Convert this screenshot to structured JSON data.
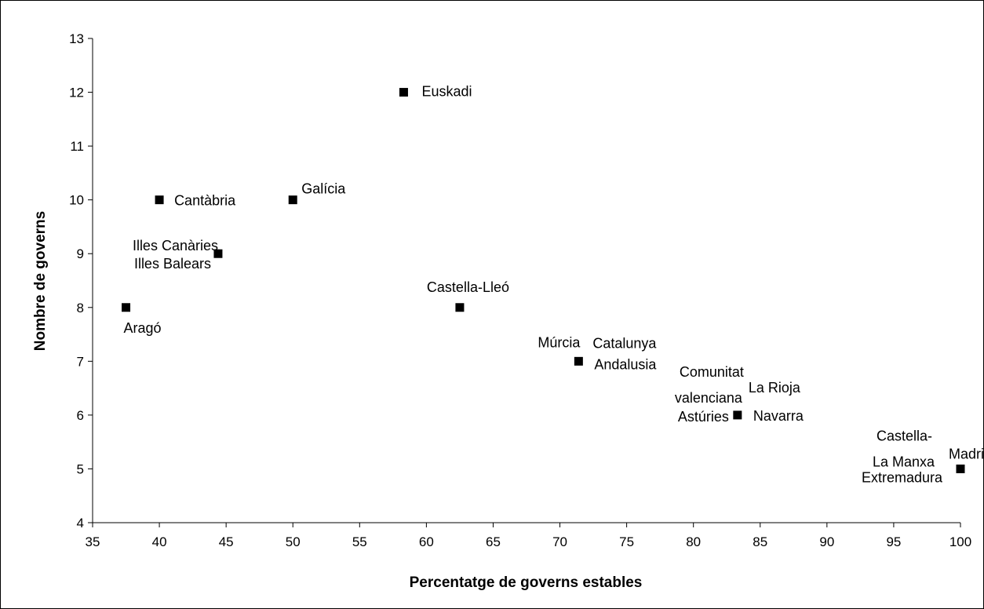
{
  "chart_data": {
    "type": "scatter",
    "xlabel": "Percentatge de governs estables",
    "ylabel": "Nombre de governs",
    "xlim": [
      35,
      100
    ],
    "ylim": [
      4,
      13
    ],
    "xticks": [
      35,
      40,
      45,
      50,
      55,
      60,
      65,
      70,
      75,
      80,
      85,
      90,
      95,
      100
    ],
    "yticks": [
      4,
      5,
      6,
      7,
      8,
      9,
      10,
      11,
      12,
      13
    ],
    "grid": false,
    "marker": "square",
    "marker_color": "#000000",
    "points": [
      {
        "x": 37.5,
        "y": 8
      },
      {
        "x": 40,
        "y": 10
      },
      {
        "x": 44.4,
        "y": 9
      },
      {
        "x": 50,
        "y": 10
      },
      {
        "x": 58.3,
        "y": 12
      },
      {
        "x": 62.5,
        "y": 8
      },
      {
        "x": 71.4,
        "y": 7
      },
      {
        "x": 83.3,
        "y": 6
      },
      {
        "x": 100,
        "y": 5
      }
    ],
    "labels": [
      {
        "text": "Aragó",
        "x": 37.5,
        "y": 8
      },
      {
        "text": "Cantàbria",
        "x": 40,
        "y": 10
      },
      {
        "text": "Illes Canàries",
        "x": 44.4,
        "y": 9
      },
      {
        "text": "Illes Balears",
        "x": 44.4,
        "y": 9
      },
      {
        "text": "Galícia",
        "x": 50,
        "y": 10
      },
      {
        "text": "Euskadi",
        "x": 58.3,
        "y": 12
      },
      {
        "text": "Castella-Lleó",
        "x": 62.5,
        "y": 8
      },
      {
        "text": "Múrcia",
        "x": 71.4,
        "y": 7
      },
      {
        "text": "Catalunya",
        "x": 71.4,
        "y": 7
      },
      {
        "text": "Andalusia",
        "x": 71.4,
        "y": 7
      },
      {
        "text": "Comunitat",
        "x": 83.3,
        "y": 6
      },
      {
        "text": "valenciana",
        "x": 83.3,
        "y": 6
      },
      {
        "text": "La Rioja",
        "x": 83.3,
        "y": 6
      },
      {
        "text": "Astúries",
        "x": 83.3,
        "y": 6
      },
      {
        "text": "Navarra",
        "x": 83.3,
        "y": 6
      },
      {
        "text": "Castella-",
        "x": 100,
        "y": 5
      },
      {
        "text": "La Manxa",
        "x": 100,
        "y": 5
      },
      {
        "text": "Madrid",
        "x": 100,
        "y": 5
      },
      {
        "text": "Extremadura",
        "x": 100,
        "y": 5
      }
    ]
  }
}
